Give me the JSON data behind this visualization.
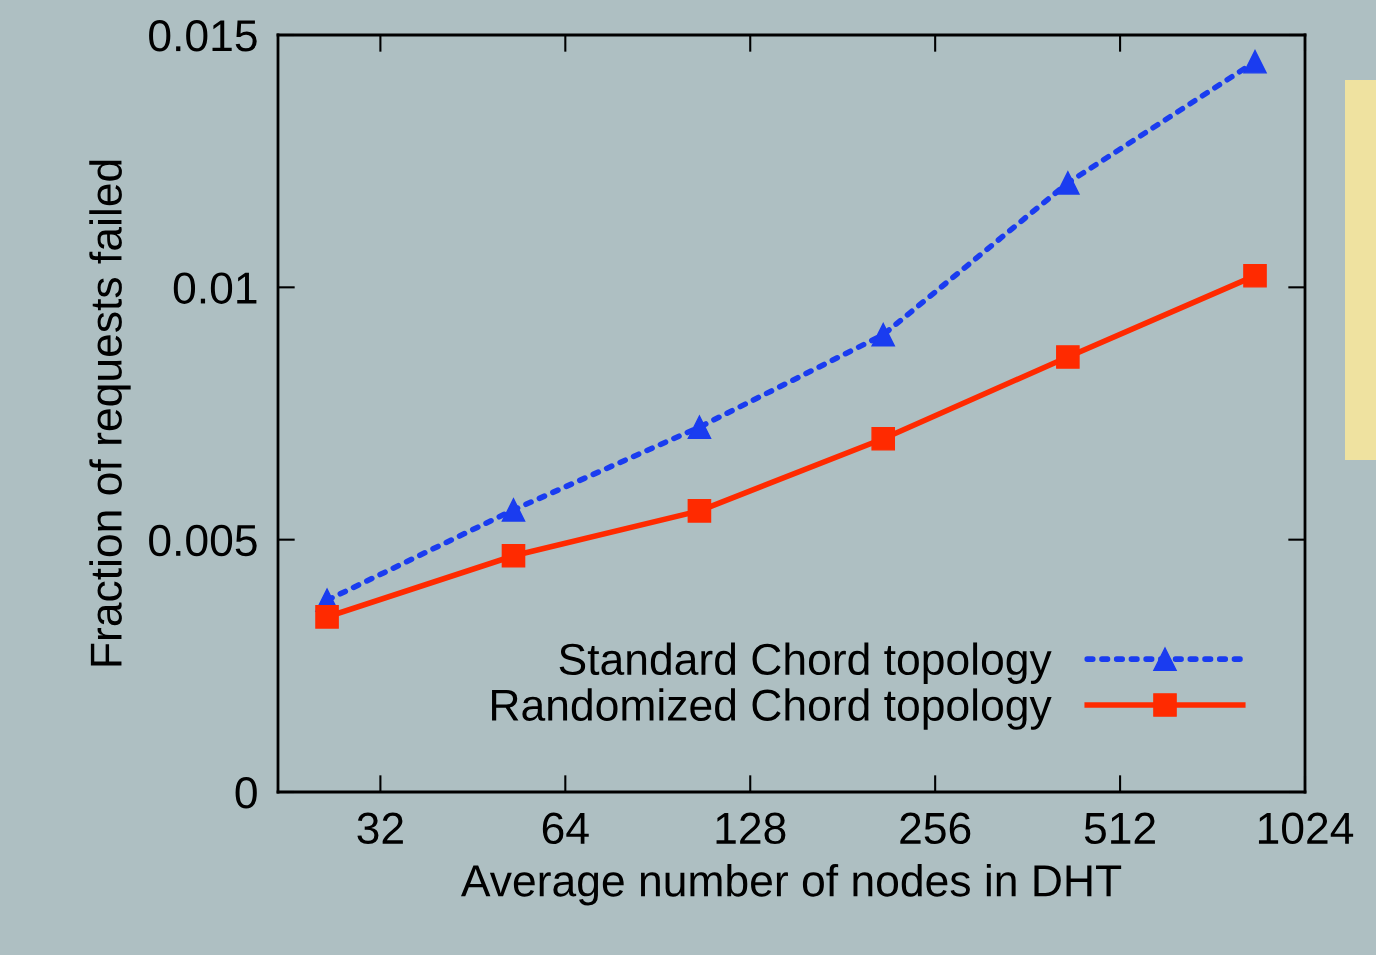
{
  "chart_data": {
    "type": "line",
    "xlabel": "Average number of nodes in DHT",
    "ylabel": "Fraction of requests failed",
    "log": "x",
    "xlim": [
      21.8,
      1024
    ],
    "xticks": [
      32,
      64,
      128,
      256,
      512,
      1024
    ],
    "ylim": [
      0,
      0.015
    ],
    "yticks": [
      {
        "value": 0,
        "label": "0"
      },
      0.005,
      0.01,
      0.015
    ],
    "grid": false,
    "legend": "bottom right",
    "series": [
      {
        "name": "Standard Chord topology",
        "color": "#1a3cf0",
        "marker": "triangle",
        "line_style": "dotted",
        "x": [
          26.2,
          52.7,
          105.8,
          210.7,
          421,
          849
        ],
        "values": [
          0.0038,
          0.00559,
          0.00723,
          0.00906,
          0.01207,
          0.01447
        ]
      },
      {
        "name": "Randomized Chord topology",
        "color": "#ff2a00",
        "marker": "square",
        "line_style": "solid",
        "x": [
          26.2,
          52.7,
          105.8,
          210.7,
          421,
          849
        ],
        "values": [
          0.00347,
          0.00468,
          0.00557,
          0.007,
          0.00862,
          0.01023
        ]
      }
    ]
  }
}
